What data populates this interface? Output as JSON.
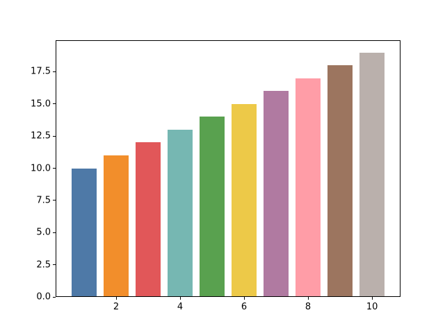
{
  "chart_data": {
    "type": "bar",
    "title": "",
    "xlabel": "",
    "ylabel": "",
    "x": [
      1,
      2,
      3,
      4,
      5,
      6,
      7,
      8,
      9,
      10
    ],
    "values": [
      10,
      11,
      12,
      13,
      14,
      15,
      16,
      17,
      18,
      19
    ],
    "bar_width": 0.8,
    "colors": [
      "#4e79a7",
      "#f28e2b",
      "#e15759",
      "#76b7b2",
      "#59a14f",
      "#edc948",
      "#b07aa1",
      "#ff9da7",
      "#9c755f",
      "#bab0ac"
    ],
    "xlim": [
      0.11,
      10.89
    ],
    "ylim": [
      0,
      19.95
    ],
    "xticks": [
      2,
      4,
      6,
      8,
      10
    ],
    "xtick_labels": [
      "2",
      "4",
      "6",
      "8",
      "10"
    ],
    "yticks": [
      0,
      2.5,
      5,
      7.5,
      10,
      12.5,
      15,
      17.5
    ],
    "ytick_labels": [
      "0.0",
      "2.5",
      "5.0",
      "7.5",
      "10.0",
      "12.5",
      "15.0",
      "17.5"
    ],
    "grid": false,
    "legend": "none",
    "spine_color": "#000000",
    "background_color": "#ffffff"
  }
}
